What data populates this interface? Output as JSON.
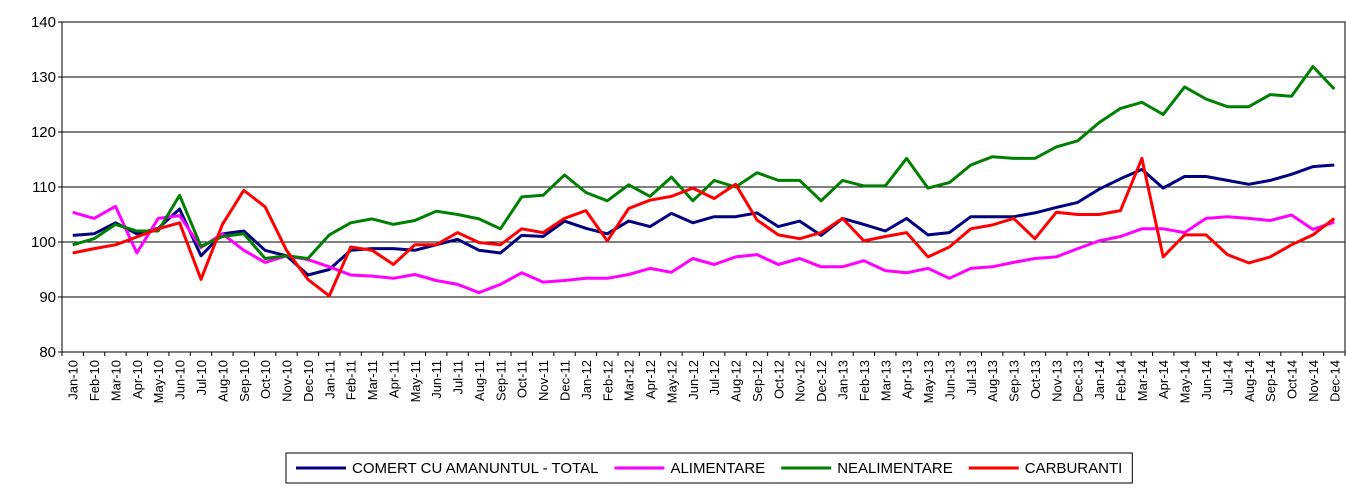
{
  "chart_data": {
    "type": "line",
    "categories": [
      "Jan-10",
      "Feb-10",
      "Mar-10",
      "Apr-10",
      "May-10",
      "Jun-10",
      "Jul-10",
      "Aug-10",
      "Sep-10",
      "Oct-10",
      "Nov-10",
      "Dec-10",
      "Jan-11",
      "Feb-11",
      "Mar-11",
      "Apr-11",
      "May-11",
      "Jun-11",
      "Jul-11",
      "Aug-11",
      "Sep-11",
      "Oct-11",
      "Nov-11",
      "Dec-11",
      "Jan-12",
      "Feb-12",
      "Mar-12",
      "Apr-12",
      "May-12",
      "Jun-12",
      "Jul-12",
      "Aug-12",
      "Sep-12",
      "Oct-12",
      "Nov-12",
      "Dec-12",
      "Jan-13",
      "Feb-13",
      "Mar-13",
      "Apr-13",
      "May-13",
      "Jun-13",
      "Jul-13",
      "Aug-13",
      "Sep-13",
      "Oct-13",
      "Nov-13",
      "Dec-13",
      "Jan-14",
      "Feb-14",
      "Mar-14",
      "Apr-14",
      "May-14",
      "Jun-14",
      "Jul-14",
      "Aug-14",
      "Sep-14",
      "Oct-14",
      "Nov-14",
      "Dec-14"
    ],
    "series": [
      {
        "name": "COMERT CU AMANUNTUL - TOTAL",
        "color": "#000080",
        "values": [
          101.2,
          101.5,
          103.5,
          101.5,
          102.5,
          106,
          97.5,
          101.5,
          102,
          98.5,
          97.5,
          94,
          95,
          98.5,
          98.8,
          98.8,
          98.5,
          99.5,
          100.5,
          98.5,
          98,
          101.2,
          101,
          103.8,
          102.5,
          101.5,
          103.8,
          102.8,
          105.2,
          103.5,
          104.6,
          104.6,
          105.3,
          102.8,
          103.8,
          101.2,
          104.3,
          103.2,
          102,
          104.3,
          101.3,
          101.7,
          104.6,
          104.6,
          104.6,
          105.3,
          106.3,
          107.2,
          109.6,
          111.5,
          113.2,
          109.8,
          111.9,
          111.9,
          111.2,
          110.5,
          111.2,
          112.3,
          113.7,
          114
        ]
      },
      {
        "name": "ALIMENTARE",
        "color": "#ff00ff",
        "values": [
          105.4,
          104.3,
          106.5,
          98,
          104.3,
          104.8,
          99,
          101.5,
          98.5,
          96.3,
          97.5,
          96.8,
          95.5,
          94,
          93.8,
          93.4,
          94.1,
          93,
          92.3,
          90.8,
          92.3,
          94.4,
          92.7,
          93,
          93.4,
          93.4,
          94.1,
          95.2,
          94.5,
          97,
          95.9,
          97.3,
          97.7,
          95.9,
          97,
          95.5,
          95.5,
          96.6,
          94.8,
          94.4,
          95.2,
          93.4,
          95.2,
          95.5,
          96.3,
          97,
          97.3,
          98.8,
          100.2,
          101,
          102.4,
          102.4,
          101.7,
          104.3,
          104.6,
          104.3,
          103.9,
          104.9,
          102.3,
          103.6
        ]
      },
      {
        "name": "NEALIMENTARE",
        "color": "#008000",
        "values": [
          99.5,
          100.6,
          103.2,
          102,
          102,
          108.5,
          99.2,
          101,
          101.5,
          97,
          97.5,
          97,
          101.3,
          103.5,
          104.2,
          103.2,
          103.9,
          105.6,
          105,
          104.2,
          102.4,
          108.2,
          108.5,
          112.2,
          109,
          107.5,
          110.4,
          108.3,
          111.8,
          107.5,
          111.2,
          110,
          112.6,
          111.2,
          111.2,
          107.5,
          111.2,
          110.2,
          110.2,
          115.2,
          109.8,
          110.8,
          114,
          115.5,
          115.2,
          115.2,
          117.3,
          118.4,
          121.7,
          124.3,
          125.4,
          123.2,
          128.2,
          126,
          124.6,
          124.6,
          126.8,
          126.5,
          131.9,
          127.8
        ]
      },
      {
        "name": "CARBURANTI",
        "color": "#ff0000",
        "values": [
          98,
          98.8,
          99.5,
          100.9,
          102.4,
          103.5,
          93.2,
          103.2,
          109.4,
          106.4,
          98.5,
          93.2,
          90.2,
          99.1,
          98.5,
          95.9,
          99.5,
          99.5,
          101.7,
          99.9,
          99.5,
          102.4,
          101.7,
          104.3,
          105.7,
          100.2,
          106.1,
          107.6,
          108.3,
          109.8,
          107.9,
          110.5,
          104,
          101.3,
          100.6,
          101.7,
          104.3,
          100.2,
          101,
          101.7,
          97.3,
          99.1,
          102.4,
          103.1,
          104.3,
          100.6,
          105.4,
          105,
          105,
          105.7,
          115.2,
          97.3,
          101.3,
          101.3,
          97.7,
          96.2,
          97.3,
          99.5,
          101.3,
          104.3
        ]
      }
    ],
    "ylim": [
      80,
      140
    ],
    "yticks": [
      80,
      90,
      100,
      110,
      120,
      130,
      140
    ],
    "grid": true,
    "legend": "bottom"
  }
}
